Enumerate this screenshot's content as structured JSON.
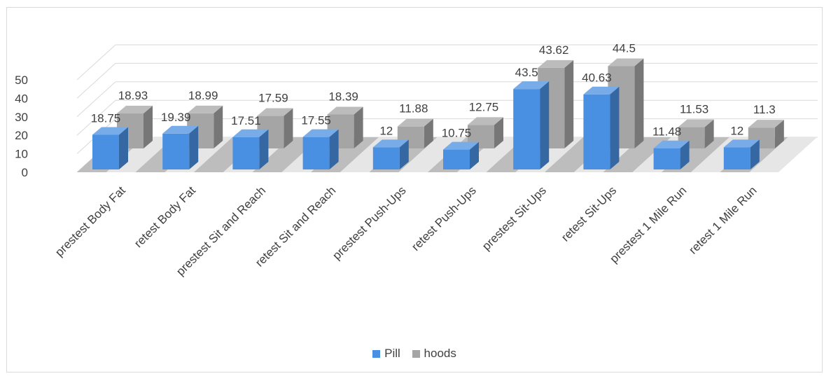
{
  "chart_data": {
    "type": "bar",
    "title": "",
    "xlabel": "",
    "ylabel": "",
    "ylim": [
      0,
      50
    ],
    "yticks": [
      0,
      10,
      20,
      30,
      40,
      50
    ],
    "grid": true,
    "legend_position": "bottom",
    "categories": [
      "prestest Body Fat",
      "retest Body Fat",
      "prestest Sit and Reach",
      "retest Sit and Reach",
      "prestest Push-Ups",
      "retest Push-Ups",
      "prestest Sit-Ups",
      "retest Sit-Ups",
      "prestest 1 Mile Run",
      "retest 1 Mile Run"
    ],
    "series": [
      {
        "name": "Pill",
        "color": "#4a90e2",
        "values": [
          18.75,
          19.39,
          17.51,
          17.55,
          12,
          10.75,
          43.5,
          40.63,
          11.48,
          12
        ]
      },
      {
        "name": "hoods",
        "color": "#a5a5a5",
        "values": [
          18.93,
          18.99,
          17.59,
          18.39,
          11.88,
          12.75,
          43.62,
          44.5,
          11.53,
          11.3
        ]
      }
    ]
  }
}
